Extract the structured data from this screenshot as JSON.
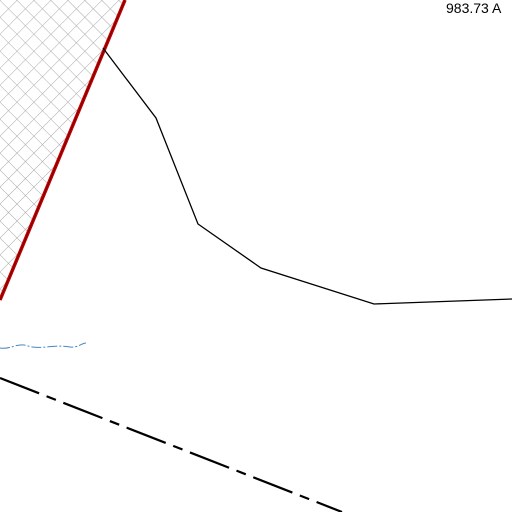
{
  "labels": [
    "983.73 A"
  ]
}
